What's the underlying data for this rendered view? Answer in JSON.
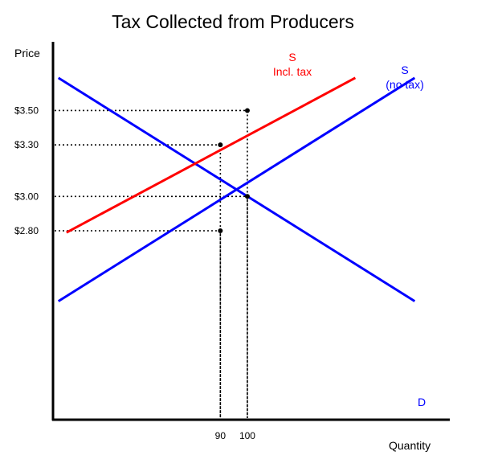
{
  "colors": {
    "demand": "#0000ff",
    "supply_no_tax": "#0000ff",
    "supply_with_tax": "#ff0000",
    "axis": "#000000",
    "guide": "#000000"
  },
  "chart_data": {
    "type": "line",
    "title": "Tax Collected from Producers",
    "xlabel": "Quantity",
    "ylabel": "Price",
    "x_ticks": [
      "90",
      "100"
    ],
    "y_ticks": [
      "$3.50",
      "$3.30",
      "$3.00",
      "$2.80"
    ],
    "xlim": [
      28,
      175
    ],
    "ylim": [
      1.7,
      3.9
    ],
    "grid": false,
    "series": [
      {
        "key": "demand",
        "label_lines": [
          "D"
        ],
        "color": "#0000ff",
        "points": [
          [
            30,
            3.69
          ],
          [
            162,
            2.39
          ]
        ]
      },
      {
        "key": "supply_no_tax",
        "label_lines": [
          "S",
          "(no tax)"
        ],
        "color": "#0000ff",
        "points": [
          [
            30,
            2.39
          ],
          [
            162,
            3.69
          ]
        ]
      },
      {
        "key": "supply_with_tax",
        "label_lines": [
          "S",
          "Incl. tax"
        ],
        "color": "#ff0000",
        "points": [
          [
            33,
            2.79
          ],
          [
            140,
            3.69
          ]
        ]
      }
    ],
    "key_points": [
      {
        "x": 100,
        "y": 3.5
      },
      {
        "x": 90,
        "y": 3.3
      },
      {
        "x": 100,
        "y": 3.0
      },
      {
        "x": 90,
        "y": 2.8
      }
    ]
  }
}
